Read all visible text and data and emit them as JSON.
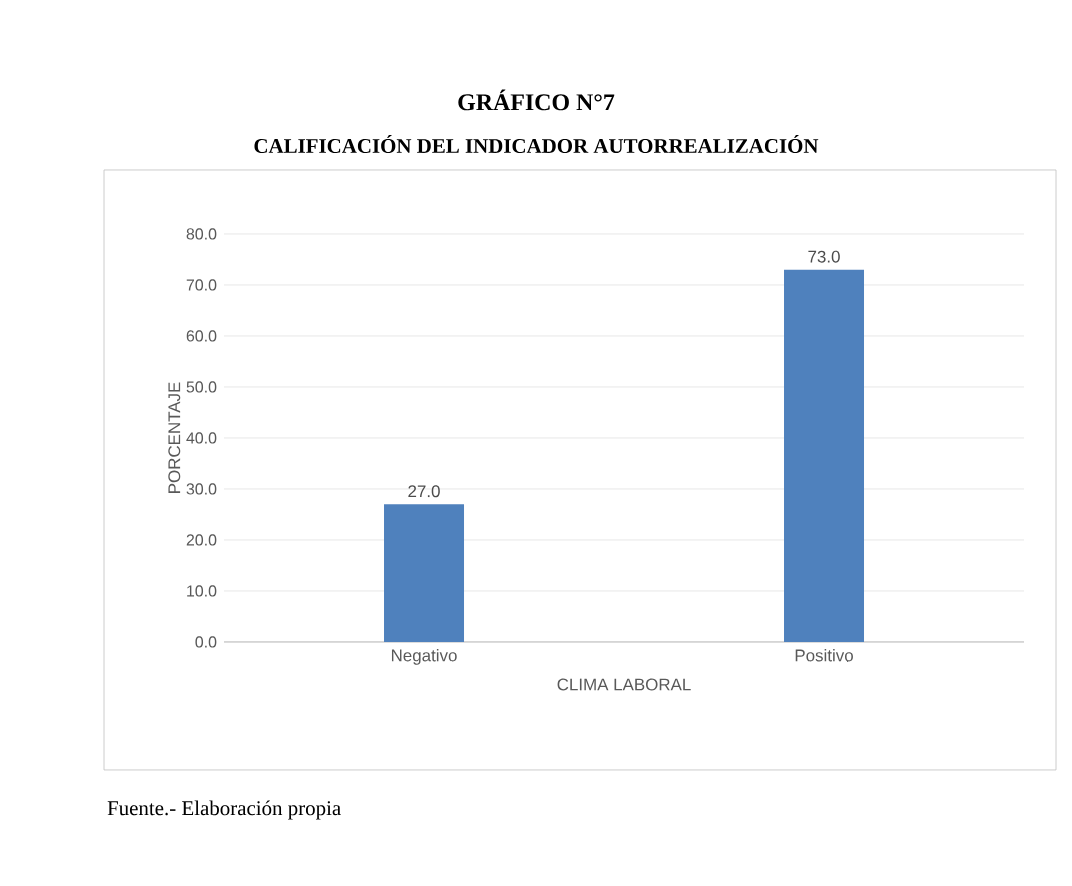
{
  "chart_data": {
    "type": "bar",
    "title": "GRÁFICO N°7",
    "subtitle": "CALIFICACIÓN DEL INDICADOR AUTORREALIZACIÓN",
    "xlabel": "CLIMA LABORAL",
    "ylabel": "PORCENTAJE",
    "categories": [
      "Negativo",
      "Positivo"
    ],
    "values": [
      27.0,
      73.0
    ],
    "value_labels": [
      "27.0",
      "73.0"
    ],
    "color": "#4f81bd",
    "ylim": [
      0,
      80
    ],
    "yticks": [
      {
        "value": 0,
        "label": "0.0"
      },
      {
        "value": 10,
        "label": "10.0"
      },
      {
        "value": 20,
        "label": "20.0"
      },
      {
        "value": 30,
        "label": "30.0"
      },
      {
        "value": 40,
        "label": "40.0"
      },
      {
        "value": 50,
        "label": "50.0"
      },
      {
        "value": 60,
        "label": "60.0"
      },
      {
        "value": 70,
        "label": "70.0"
      },
      {
        "value": 80,
        "label": "80.0"
      }
    ],
    "grid": "y",
    "annotations": [
      "Fuente.- Elaboración propia"
    ]
  }
}
